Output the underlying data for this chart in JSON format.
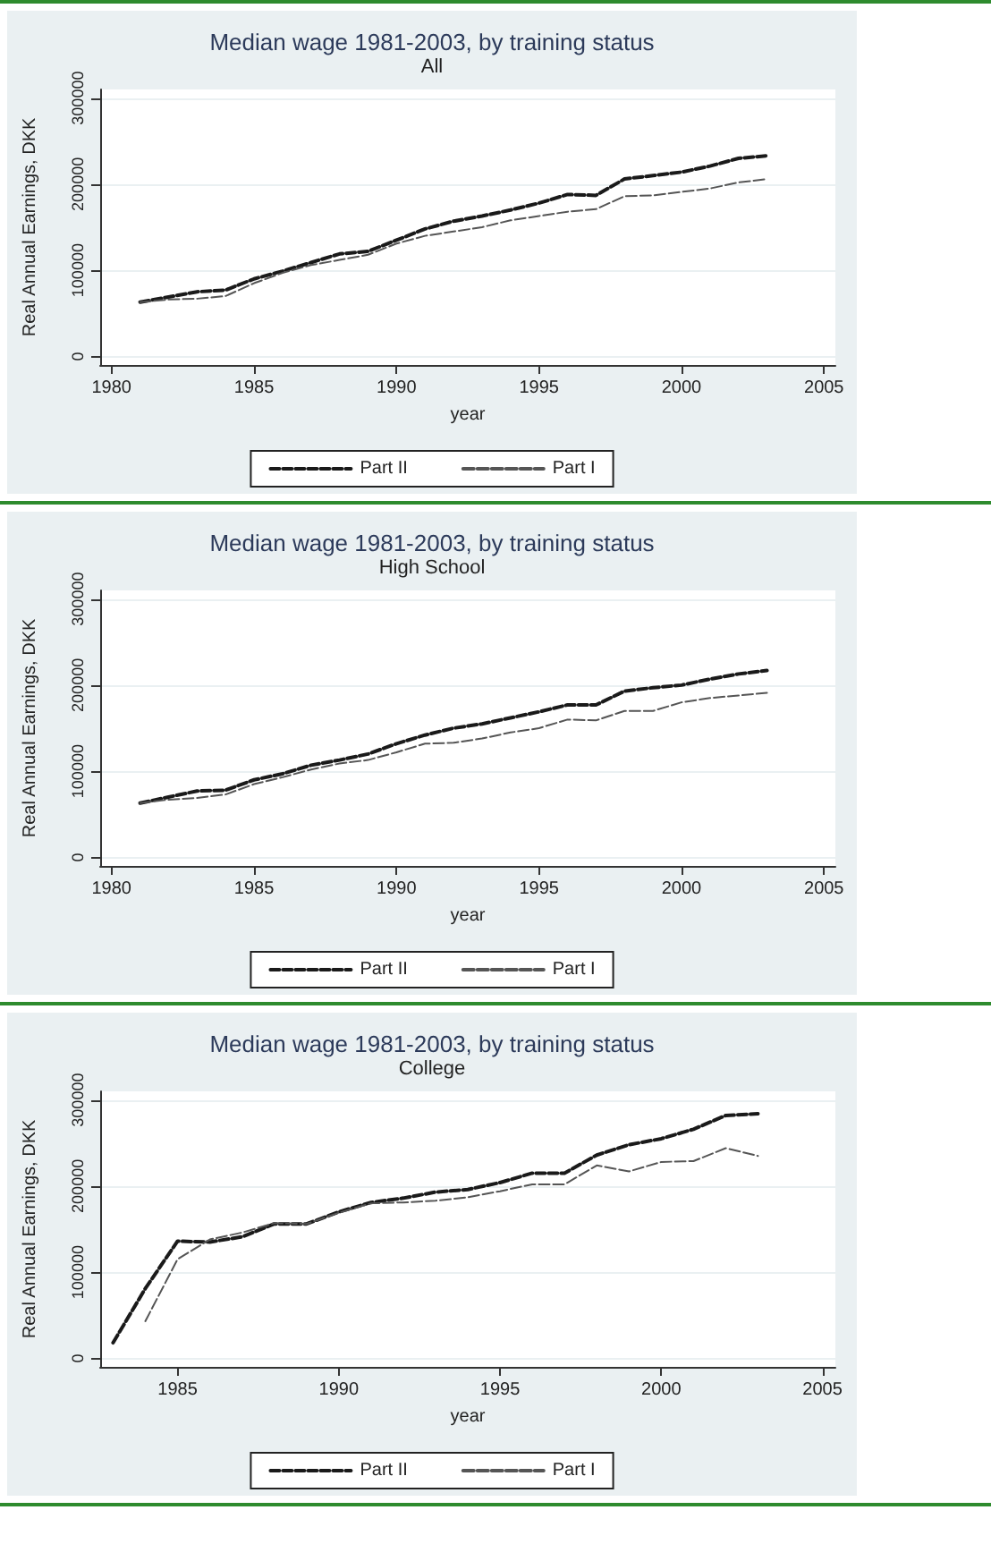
{
  "chart_data": [
    {
      "type": "line",
      "title": "Median wage 1981-2003, by training status",
      "subtitle": "All",
      "xlabel": "year",
      "ylabel": "Real Annual Earnings, DKK",
      "x": [
        1981,
        1982,
        1983,
        1984,
        1985,
        1986,
        1987,
        1988,
        1989,
        1990,
        1991,
        1992,
        1993,
        1994,
        1995,
        1996,
        1997,
        1998,
        1999,
        2000,
        2001,
        2002,
        2003
      ],
      "xlim": [
        1979.6,
        2005.4
      ],
      "xticks": [
        1980,
        1985,
        1990,
        1995,
        2000,
        2005
      ],
      "ylim": [
        -10000,
        310000
      ],
      "yticks": [
        0,
        100000,
        200000,
        300000
      ],
      "grid": "y",
      "legend": "bottom",
      "marker": "none",
      "series": [
        {
          "name": "Part II",
          "color": "#1a1a1a",
          "line_style": "dashed",
          "values": [
            63000,
            69000,
            75000,
            77000,
            90000,
            99000,
            109000,
            119000,
            122000,
            135000,
            148000,
            157000,
            163000,
            170000,
            178000,
            188000,
            187000,
            206000,
            210000,
            214000,
            221000,
            230000,
            233000
          ]
        },
        {
          "name": "Part I",
          "color": "#555555",
          "line_style": "dashed",
          "values": [
            63000,
            66000,
            67000,
            70000,
            85000,
            97000,
            106000,
            112000,
            118000,
            131000,
            140000,
            145000,
            150000,
            158000,
            163000,
            168000,
            171000,
            186000,
            187000,
            191000,
            195000,
            202000,
            206000
          ]
        }
      ]
    },
    {
      "type": "line",
      "title": "Median wage 1981-2003, by training status",
      "subtitle": "High School",
      "xlabel": "year",
      "ylabel": "Real Annual Earnings, DKK",
      "x": [
        1981,
        1982,
        1983,
        1984,
        1985,
        1986,
        1987,
        1988,
        1989,
        1990,
        1991,
        1992,
        1993,
        1994,
        1995,
        1996,
        1997,
        1998,
        1999,
        2000,
        2001,
        2002,
        2003
      ],
      "xlim": [
        1979.6,
        2005.4
      ],
      "xticks": [
        1980,
        1985,
        1990,
        1995,
        2000,
        2005
      ],
      "ylim": [
        -10000,
        310000
      ],
      "yticks": [
        0,
        100000,
        200000,
        300000
      ],
      "grid": "y",
      "legend": "bottom",
      "marker": "none",
      "series": [
        {
          "name": "Part II",
          "color": "#1a1a1a",
          "line_style": "dashed",
          "values": [
            63000,
            70000,
            77000,
            78000,
            90000,
            97000,
            107000,
            113000,
            120000,
            132000,
            142000,
            150000,
            155000,
            162000,
            169000,
            177000,
            177000,
            193000,
            197000,
            200000,
            207000,
            213000,
            217000
          ]
        },
        {
          "name": "Part I",
          "color": "#555555",
          "line_style": "dashed",
          "values": [
            63000,
            67000,
            69000,
            73000,
            85000,
            93000,
            102000,
            109000,
            113000,
            122000,
            132000,
            133000,
            138000,
            145000,
            150000,
            160000,
            159000,
            170000,
            170000,
            180000,
            185000,
            188000,
            191000
          ]
        }
      ]
    },
    {
      "type": "line",
      "title": "Median wage 1981-2003, by training status",
      "subtitle": "College",
      "xlabel": "year",
      "ylabel": "Real Annual Earnings, DKK",
      "x": [
        1983,
        1984,
        1985,
        1986,
        1987,
        1988,
        1989,
        1990,
        1991,
        1992,
        1993,
        1994,
        1995,
        1996,
        1997,
        1998,
        1999,
        2000,
        2001,
        2002,
        2003
      ],
      "xlim": [
        1982.6,
        2005.4
      ],
      "xticks": [
        1985,
        1990,
        1995,
        2000,
        2005
      ],
      "ylim": [
        -10000,
        310000
      ],
      "yticks": [
        0,
        100000,
        200000,
        300000
      ],
      "grid": "y",
      "legend": "bottom",
      "marker": "none",
      "series": [
        {
          "name": "Part II",
          "color": "#1a1a1a",
          "line_style": "dashed",
          "values": [
            18000,
            81000,
            136000,
            135000,
            141000,
            156000,
            156000,
            170000,
            181000,
            186000,
            193000,
            196000,
            204000,
            215000,
            215000,
            236000,
            248000,
            255000,
            266000,
            282000,
            284000
          ]
        },
        {
          "name": "Part I",
          "color": "#555555",
          "line_style": "dashed",
          "values": [
            null,
            43000,
            115000,
            138000,
            146000,
            157000,
            156000,
            169000,
            180000,
            181000,
            183000,
            187000,
            194000,
            202000,
            202000,
            224000,
            217000,
            228000,
            229000,
            244000,
            235000
          ]
        }
      ]
    }
  ]
}
